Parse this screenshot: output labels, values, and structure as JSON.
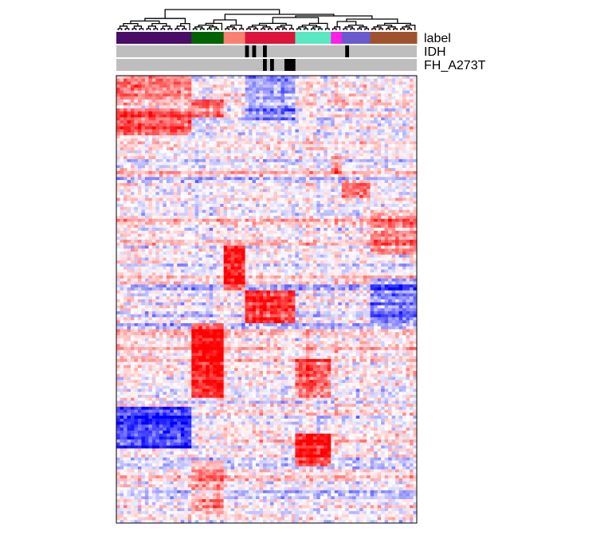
{
  "chart_data": {
    "type": "heatmap",
    "title": "",
    "xlabel": "",
    "ylabel": "",
    "n_columns": 84,
    "annotation_tracks": [
      {
        "name": "label",
        "groups": [
          {
            "color": "#4a0d67",
            "span": 21
          },
          {
            "color": "#006400",
            "span": 9
          },
          {
            "color": "#fa8072",
            "span": 6
          },
          {
            "color": "#dc143c",
            "span": 14
          },
          {
            "color": "#5ae8c0",
            "span": 10
          },
          {
            "color": "#ff1ee6",
            "span": 3
          },
          {
            "color": "#6a5acd",
            "span": 8
          },
          {
            "color": "#a0522d",
            "span": 13
          }
        ]
      },
      {
        "name": "IDH",
        "background": "#bebebe",
        "marked_color": "#000000",
        "marked_columns": [
          36,
          38,
          41,
          64
        ]
      },
      {
        "name": "FH_A273T",
        "background": "#bebebe",
        "marked_color": "#000000",
        "marked_columns": [
          41,
          43,
          47,
          48,
          49
        ]
      }
    ],
    "color_scale": {
      "low": "#0000ff",
      "mid": "#ffffff",
      "high": "#ff0000"
    },
    "dendrogram": "column hierarchical clustering tree above heatmap"
  }
}
